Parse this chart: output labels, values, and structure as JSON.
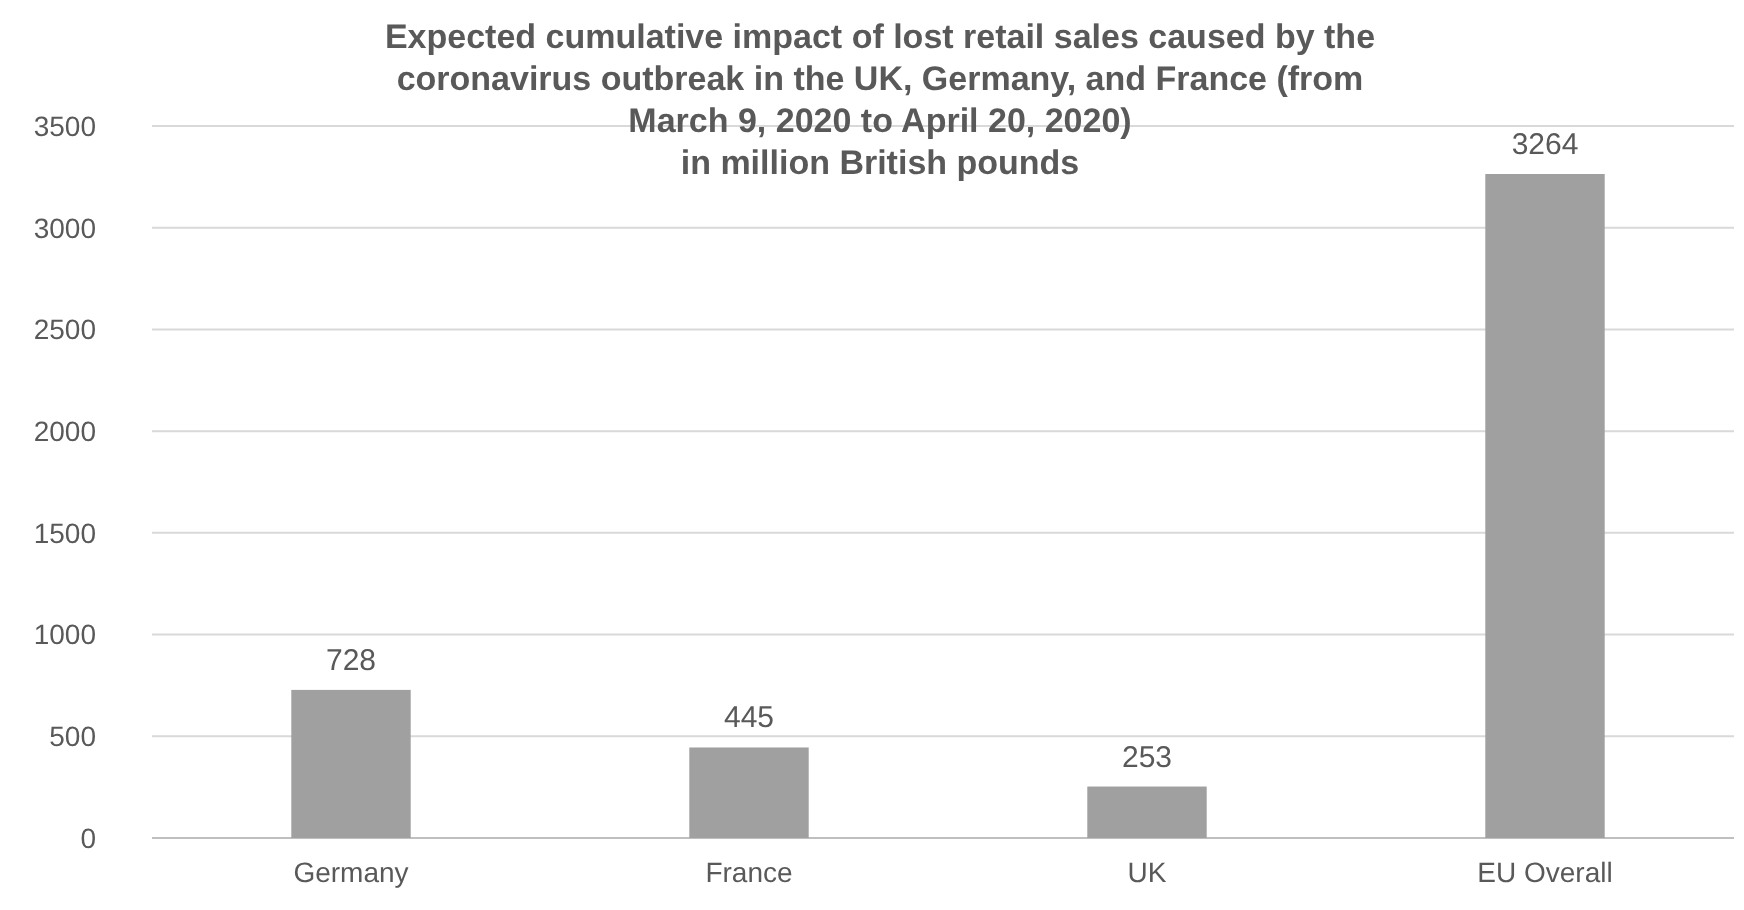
{
  "chart_data": {
    "type": "bar",
    "title": "Expected cumulative impact of lost retail sales caused by the coronavirus outbreak in the UK, Germany, and France (from March 9, 2020 to April 20, 2020)",
    "subtitle": "in million British pounds",
    "categories": [
      "Germany",
      "France",
      "UK",
      "EU Overall"
    ],
    "values": [
      728,
      445,
      253,
      3264
    ],
    "color": "#a0a0a0",
    "ylim": [
      0,
      3500
    ],
    "yticks": [
      0,
      500,
      1000,
      1500,
      2000,
      2500,
      3000,
      3500
    ],
    "grid": "y",
    "data_labels": true
  }
}
